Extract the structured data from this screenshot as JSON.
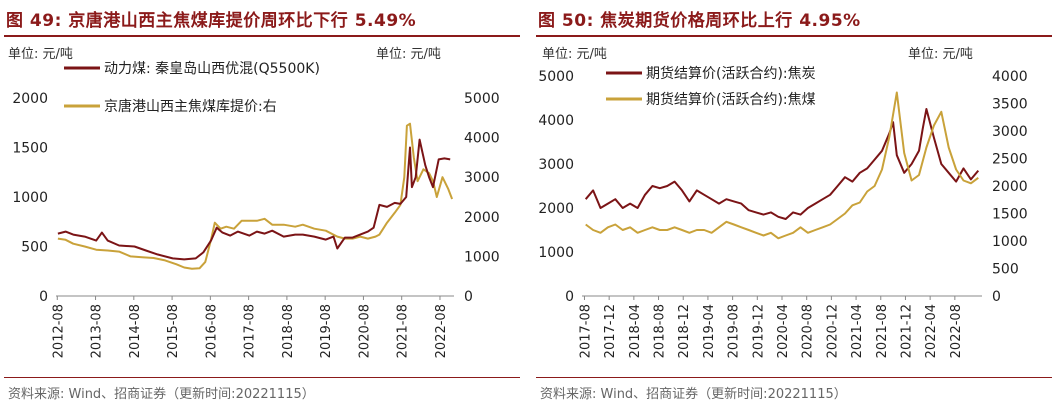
{
  "figures": [
    {
      "title": "图 49:  京唐港山西主焦煤库提价周环比下行 5.49%",
      "source": "资料来源:  Wind、招商证券（更新时间:20221115）"
    },
    {
      "title": "图 50:  焦炭期货价格周环比上行 4.95%",
      "source": "资料来源:  Wind、招商证券（更新时间:20221115）"
    }
  ],
  "colors": {
    "series_dark": "#7b1416",
    "series_gold": "#c9a23a",
    "title": "#8b1a1a"
  },
  "chart_data": [
    {
      "type": "line",
      "title": "京唐港山西主焦煤库提价周环比下行 5.49%",
      "left_unit": "单位:  元/吨",
      "right_unit": "单位:  元/吨",
      "x_ticks": [
        "2012-08",
        "2013-08",
        "2014-08",
        "2015-08",
        "2016-08",
        "2017-08",
        "2018-08",
        "2019-08",
        "2020-08",
        "2021-08",
        "2022-08"
      ],
      "x_range": [
        2012.55,
        2022.95
      ],
      "y_left": {
        "ticks": [
          0,
          500,
          1000,
          1500,
          2000
        ],
        "range": [
          0,
          2000
        ]
      },
      "y_right": {
        "ticks": [
          0,
          1000,
          2000,
          3000,
          4000,
          5000
        ],
        "range": [
          0,
          5000
        ]
      },
      "series": [
        {
          "name": "动力煤:  秦皇岛山西优混(Q5500K)",
          "axis": "left",
          "x": [
            2012.6,
            2012.8,
            2013.0,
            2013.3,
            2013.6,
            2013.75,
            2013.9,
            2014.2,
            2014.6,
            2014.9,
            2015.2,
            2015.6,
            2015.9,
            2016.2,
            2016.4,
            2016.6,
            2016.75,
            2016.9,
            2017.1,
            2017.3,
            2017.6,
            2017.8,
            2018.0,
            2018.2,
            2018.5,
            2018.8,
            2019.0,
            2019.3,
            2019.6,
            2019.8,
            2019.9,
            2020.1,
            2020.3,
            2020.5,
            2020.7,
            2020.85,
            2021.0,
            2021.2,
            2021.4,
            2021.55,
            2021.7,
            2021.8,
            2021.85,
            2021.95,
            2022.05,
            2022.2,
            2022.3,
            2022.4,
            2022.55,
            2022.7,
            2022.85
          ],
          "values": [
            630,
            650,
            620,
            600,
            560,
            640,
            560,
            510,
            500,
            460,
            420,
            380,
            370,
            380,
            440,
            560,
            690,
            640,
            610,
            650,
            610,
            650,
            630,
            660,
            600,
            620,
            620,
            600,
            570,
            600,
            480,
            590,
            590,
            620,
            650,
            690,
            920,
            900,
            940,
            930,
            1000,
            1500,
            1100,
            1200,
            1580,
            1320,
            1200,
            1100,
            1380,
            1390,
            1380
          ]
        },
        {
          "name": "京唐港山西主焦煤库提价:右",
          "axis": "right",
          "x": [
            2012.6,
            2012.8,
            2013.0,
            2013.3,
            2013.6,
            2013.9,
            2014.2,
            2014.5,
            2014.8,
            2015.1,
            2015.4,
            2015.7,
            2015.9,
            2016.1,
            2016.3,
            2016.45,
            2016.6,
            2016.7,
            2016.85,
            2017.0,
            2017.2,
            2017.4,
            2017.6,
            2017.8,
            2018.0,
            2018.2,
            2018.5,
            2018.8,
            2019.0,
            2019.3,
            2019.6,
            2019.9,
            2020.1,
            2020.3,
            2020.5,
            2020.7,
            2020.9,
            2021.0,
            2021.2,
            2021.4,
            2021.55,
            2021.65,
            2021.72,
            2021.8,
            2021.9,
            2022.0,
            2022.15,
            2022.3,
            2022.4,
            2022.5,
            2022.65,
            2022.8,
            2022.9
          ],
          "values": [
            1450,
            1420,
            1320,
            1250,
            1170,
            1150,
            1120,
            1000,
            980,
            960,
            900,
            800,
            720,
            690,
            700,
            860,
            1420,
            1850,
            1700,
            1750,
            1700,
            1900,
            1900,
            1900,
            1950,
            1800,
            1800,
            1750,
            1800,
            1700,
            1650,
            1500,
            1450,
            1450,
            1500,
            1450,
            1500,
            1550,
            1850,
            2100,
            2300,
            3000,
            4300,
            4350,
            3500,
            2900,
            3200,
            3100,
            2900,
            2500,
            3000,
            2700,
            2450
          ]
        }
      ]
    },
    {
      "type": "line",
      "title": "焦炭期货价格周环比上行 4.95%",
      "left_unit": "单位:  元/吨",
      "right_unit": "单位:  元/吨",
      "x_ticks": [
        "2017-08",
        "2017-12",
        "2018-04",
        "2018-08",
        "2018-12",
        "2019-04",
        "2019-08",
        "2019-12",
        "2020-04",
        "2020-08",
        "2020-12",
        "2021-04",
        "2021-08",
        "2021-12",
        "2022-04",
        "2022-08"
      ],
      "x_range": [
        2017.55,
        2022.95
      ],
      "y_left": {
        "ticks": [
          0,
          1000,
          2000,
          3000,
          4000,
          5000
        ],
        "range": [
          0,
          5000
        ]
      },
      "y_right": {
        "ticks": [
          0,
          500,
          1000,
          1500,
          2000,
          2500,
          3000,
          3500,
          4000
        ],
        "range": [
          0,
          4000
        ]
      },
      "series": [
        {
          "name": "期货结算价(活跃合约):焦炭",
          "axis": "left",
          "x": [
            2017.6,
            2017.7,
            2017.8,
            2017.9,
            2018.0,
            2018.1,
            2018.2,
            2018.3,
            2018.4,
            2018.5,
            2018.6,
            2018.7,
            2018.8,
            2018.9,
            2019.0,
            2019.1,
            2019.2,
            2019.3,
            2019.4,
            2019.5,
            2019.6,
            2019.7,
            2019.8,
            2019.9,
            2020.0,
            2020.1,
            2020.2,
            2020.3,
            2020.4,
            2020.5,
            2020.6,
            2020.7,
            2020.8,
            2020.9,
            2021.0,
            2021.1,
            2021.2,
            2021.3,
            2021.4,
            2021.5,
            2021.6,
            2021.7,
            2021.75,
            2021.8,
            2021.9,
            2022.0,
            2022.1,
            2022.15,
            2022.2,
            2022.3,
            2022.4,
            2022.5,
            2022.6,
            2022.7,
            2022.8,
            2022.9
          ],
          "values": [
            2200,
            2400,
            2000,
            2100,
            2200,
            2000,
            2100,
            2000,
            2300,
            2500,
            2450,
            2500,
            2600,
            2400,
            2150,
            2400,
            2300,
            2200,
            2100,
            2200,
            2150,
            2100,
            1950,
            1900,
            1850,
            1900,
            1800,
            1750,
            1900,
            1850,
            2000,
            2100,
            2200,
            2300,
            2500,
            2700,
            2600,
            2800,
            2900,
            3100,
            3300,
            3700,
            3950,
            3200,
            2800,
            3000,
            3300,
            3800,
            4250,
            3600,
            3000,
            2800,
            2600,
            2900,
            2650,
            2850
          ]
        },
        {
          "name": "期货结算价(活跃合约):焦煤",
          "axis": "right",
          "x": [
            2017.6,
            2017.7,
            2017.8,
            2017.9,
            2018.0,
            2018.1,
            2018.2,
            2018.3,
            2018.4,
            2018.5,
            2018.6,
            2018.7,
            2018.8,
            2018.9,
            2019.0,
            2019.1,
            2019.2,
            2019.3,
            2019.4,
            2019.5,
            2019.6,
            2019.7,
            2019.8,
            2019.9,
            2020.0,
            2020.1,
            2020.2,
            2020.3,
            2020.4,
            2020.5,
            2020.6,
            2020.7,
            2020.8,
            2020.9,
            2021.0,
            2021.1,
            2021.2,
            2021.3,
            2021.4,
            2021.5,
            2021.6,
            2021.7,
            2021.8,
            2021.9,
            2022.0,
            2022.1,
            2022.2,
            2022.3,
            2022.4,
            2022.5,
            2022.6,
            2022.7,
            2022.8,
            2022.9
          ],
          "values": [
            1300,
            1200,
            1150,
            1250,
            1300,
            1200,
            1250,
            1150,
            1200,
            1250,
            1200,
            1200,
            1250,
            1200,
            1150,
            1200,
            1200,
            1150,
            1250,
            1350,
            1300,
            1250,
            1200,
            1150,
            1100,
            1150,
            1050,
            1100,
            1150,
            1250,
            1150,
            1200,
            1250,
            1300,
            1400,
            1500,
            1650,
            1700,
            1900,
            2000,
            2300,
            2900,
            3700,
            2600,
            2100,
            2200,
            2700,
            3100,
            3350,
            2700,
            2300,
            2100,
            2050,
            2150
          ]
        }
      ]
    }
  ]
}
